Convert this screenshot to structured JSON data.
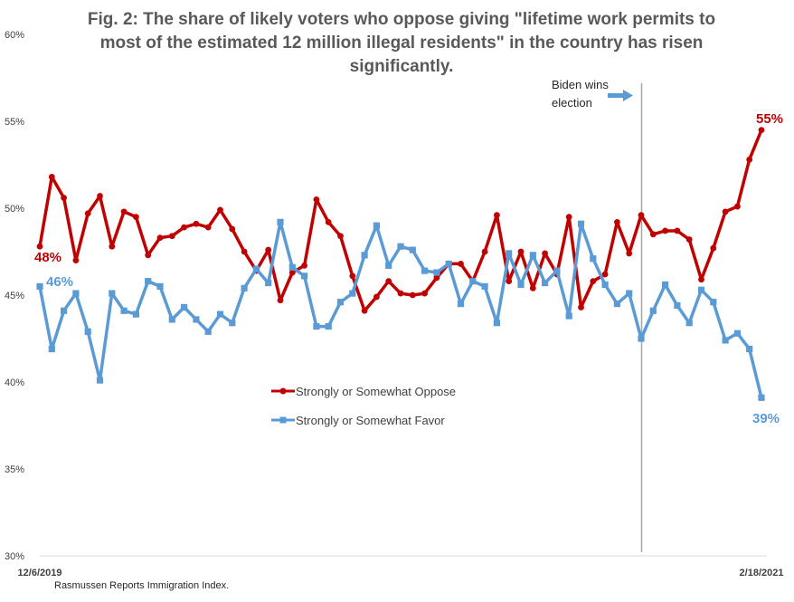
{
  "chart_data": {
    "type": "line",
    "title_lines": [
      "Fig. 2: The share of likely voters who oppose giving \"lifetime work permits to",
      "most of the estimated 12 million illegal residents\" in the country has risen",
      "significantly."
    ],
    "ylim": [
      30,
      60
    ],
    "y_ticks": [
      {
        "value": 60,
        "label": "60%"
      },
      {
        "value": 55,
        "label": "55%"
      },
      {
        "value": 50,
        "label": "50%"
      },
      {
        "value": 45,
        "label": "45%"
      },
      {
        "value": 40,
        "label": "40%"
      },
      {
        "value": 35,
        "label": "35%"
      },
      {
        "value": 30,
        "label": "30%"
      }
    ],
    "x_labels": {
      "start": "12/6/2019",
      "end": "2/18/2021"
    },
    "grid": false,
    "legend_position": "center",
    "colors": {
      "oppose": "#C00000",
      "favor": "#5B9BD5",
      "marker_line": "#A6A6A6",
      "arrow": "#5B9BD5"
    },
    "series": [
      {
        "name": "Strongly or Somewhat Oppose",
        "key": "oppose",
        "values": [
          47.8,
          51.8,
          50.6,
          47.0,
          49.7,
          50.7,
          47.8,
          49.8,
          49.5,
          47.3,
          48.3,
          48.4,
          48.9,
          49.1,
          48.9,
          49.9,
          48.8,
          47.5,
          46.4,
          47.6,
          44.7,
          46.3,
          46.7,
          50.5,
          49.2,
          48.4,
          46.1,
          44.1,
          44.9,
          45.8,
          45.1,
          45.0,
          45.1,
          46.0,
          46.8,
          46.8,
          45.8,
          47.5,
          49.6,
          45.8,
          47.5,
          45.4,
          47.4,
          46.2,
          49.5,
          44.3,
          45.8,
          46.2,
          49.2,
          47.4,
          49.6,
          48.5,
          48.7,
          48.7,
          48.2,
          45.9,
          47.7,
          49.8,
          50.1,
          52.8,
          54.5
        ]
      },
      {
        "name": "Strongly or Somewhat Favor",
        "key": "favor",
        "values": [
          45.5,
          41.9,
          44.1,
          45.1,
          42.9,
          40.1,
          45.1,
          44.1,
          43.9,
          45.8,
          45.5,
          43.6,
          44.3,
          43.6,
          42.9,
          43.9,
          43.4,
          45.4,
          46.5,
          45.7,
          49.2,
          46.6,
          46.1,
          43.2,
          43.2,
          44.6,
          45.1,
          47.3,
          49.0,
          46.7,
          47.8,
          47.6,
          46.4,
          46.3,
          46.8,
          44.5,
          45.8,
          45.5,
          43.4,
          47.4,
          45.6,
          47.3,
          45.7,
          46.4,
          43.8,
          49.1,
          47.1,
          45.6,
          44.5,
          45.1,
          42.5,
          44.1,
          45.6,
          44.4,
          43.4,
          45.3,
          44.6,
          42.4,
          42.8,
          41.9,
          39.1
        ]
      }
    ],
    "annotations": {
      "start_oppose": "48%",
      "start_favor": "46%",
      "end_oppose": "55%",
      "end_favor": "39%",
      "event_line1": "Biden wins",
      "event_line2": "election",
      "event_index": 50
    },
    "source": "Rasmussen Reports Immigration Index."
  }
}
